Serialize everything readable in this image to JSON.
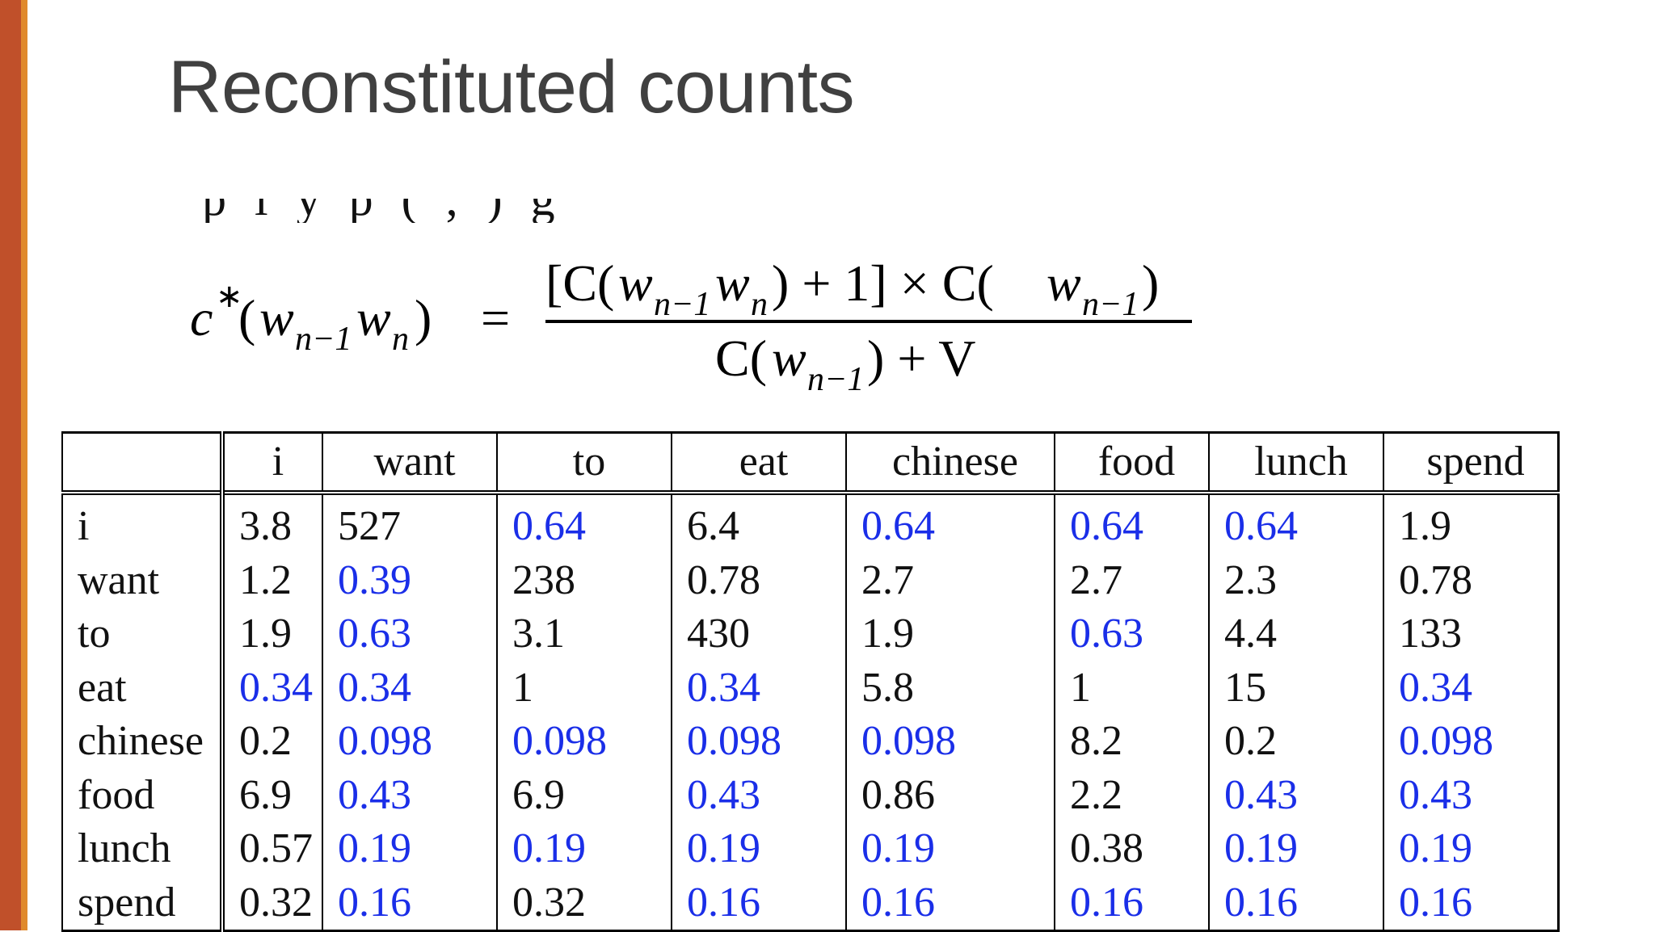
{
  "slide": {
    "title": "Reconstituted counts"
  },
  "clipped_line": "p   l   y   p   ( , ) g",
  "formula": {
    "lhs_c": "c",
    "lhs_star": "∗",
    "lhs_open": "(",
    "lhs_w1": "w",
    "lhs_sub1": "n−1",
    "lhs_w2": "w",
    "lhs_sub2": "n",
    "lhs_close": ")",
    "equals": "=",
    "num_part1": "[C(",
    "num_w1": "w",
    "num_sub1": "n−1",
    "num_w2": "w",
    "num_sub2": "n",
    "num_part2": ") + 1] × C(",
    "num_w3": "w",
    "num_sub3": "n−1",
    "num_part3": ")",
    "den_part1": "C(",
    "den_w": "w",
    "den_sub": "n−1",
    "den_part2": ") + V"
  },
  "table": {
    "columns": [
      "i",
      "want",
      "to",
      "eat",
      "chinese",
      "food",
      "lunch",
      "spend"
    ],
    "rows": [
      {
        "label": "i",
        "cells": [
          "3.8",
          "527",
          "0.64",
          "6.4",
          "0.64",
          "0.64",
          "0.64",
          "1.9"
        ]
      },
      {
        "label": "want",
        "cells": [
          "1.2",
          "0.39",
          "238",
          "0.78",
          "2.7",
          "2.7",
          "2.3",
          "0.78"
        ]
      },
      {
        "label": "to",
        "cells": [
          "1.9",
          "0.63",
          "3.1",
          "430",
          "1.9",
          "0.63",
          "4.4",
          "133"
        ]
      },
      {
        "label": "eat",
        "cells": [
          "0.34",
          "0.34",
          "1",
          "0.34",
          "5.8",
          "1",
          "15",
          "0.34"
        ]
      },
      {
        "label": "chinese",
        "cells": [
          "0.2",
          "0.098",
          "0.098",
          "0.098",
          "0.098",
          "8.2",
          "0.2",
          "0.098"
        ]
      },
      {
        "label": "food",
        "cells": [
          "6.9",
          "0.43",
          "6.9",
          "0.43",
          "0.86",
          "2.2",
          "0.43",
          "0.43"
        ]
      },
      {
        "label": "lunch",
        "cells": [
          "0.57",
          "0.19",
          "0.19",
          "0.19",
          "0.19",
          "0.38",
          "0.19",
          "0.19"
        ]
      },
      {
        "label": "spend",
        "cells": [
          "0.32",
          "0.16",
          "0.32",
          "0.16",
          "0.16",
          "0.16",
          "0.16",
          "0.16"
        ]
      }
    ],
    "highlighted": [
      [
        0,
        0,
        1,
        0,
        1,
        1,
        1,
        0
      ],
      [
        0,
        1,
        0,
        0,
        0,
        0,
        0,
        0
      ],
      [
        0,
        1,
        0,
        0,
        0,
        1,
        0,
        0
      ],
      [
        1,
        1,
        0,
        1,
        0,
        0,
        0,
        1
      ],
      [
        0,
        1,
        1,
        1,
        1,
        0,
        0,
        1
      ],
      [
        0,
        1,
        0,
        1,
        0,
        0,
        1,
        1
      ],
      [
        0,
        1,
        1,
        1,
        1,
        0,
        1,
        1
      ],
      [
        0,
        1,
        0,
        1,
        1,
        1,
        1,
        1
      ]
    ],
    "highlight_color": "#1a2ee8",
    "text_color": "#111111"
  },
  "colors": {
    "accent_dark": "#c0502a",
    "accent_light": "#e08a2c",
    "title": "#404040"
  }
}
